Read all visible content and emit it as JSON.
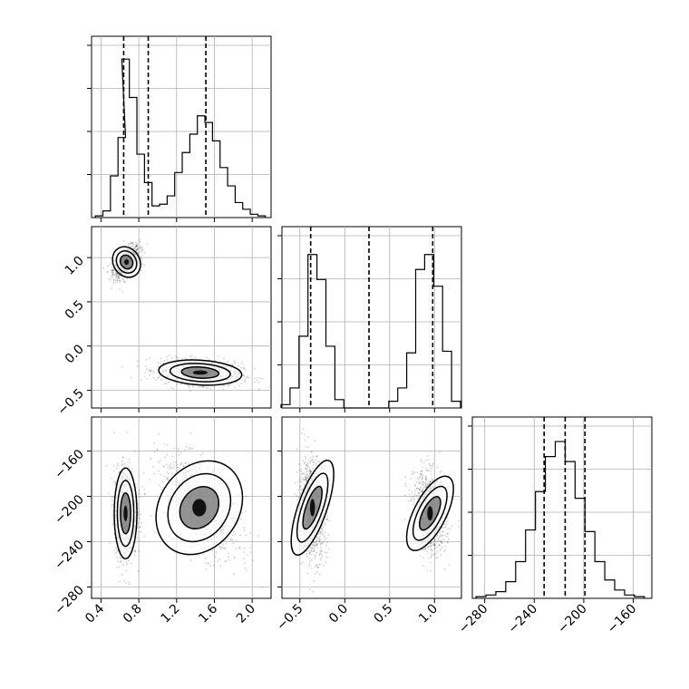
{
  "chart_data": [
    {
      "type": "histogram",
      "panel": "p0-marginal",
      "x": {
        "ticks": [
          "0.4",
          "0.8",
          "1.2",
          "1.6",
          "2.0"
        ],
        "range": [
          0.3,
          2.2
        ]
      },
      "bins": [
        {
          "x": 0.38,
          "h": 0.01
        },
        {
          "x": 0.46,
          "h": 0.04
        },
        {
          "x": 0.54,
          "h": 0.25
        },
        {
          "x": 0.62,
          "h": 0.48
        },
        {
          "x": 0.66,
          "h": 0.95
        },
        {
          "x": 0.74,
          "h": 0.72
        },
        {
          "x": 0.82,
          "h": 0.38
        },
        {
          "x": 0.9,
          "h": 0.21
        },
        {
          "x": 0.98,
          "h": 0.07
        },
        {
          "x": 1.06,
          "h": 0.08
        },
        {
          "x": 1.14,
          "h": 0.13
        },
        {
          "x": 1.22,
          "h": 0.27
        },
        {
          "x": 1.3,
          "h": 0.39
        },
        {
          "x": 1.38,
          "h": 0.5
        },
        {
          "x": 1.46,
          "h": 0.61
        },
        {
          "x": 1.54,
          "h": 0.57
        },
        {
          "x": 1.62,
          "h": 0.46
        },
        {
          "x": 1.7,
          "h": 0.3
        },
        {
          "x": 1.78,
          "h": 0.19
        },
        {
          "x": 1.86,
          "h": 0.09
        },
        {
          "x": 1.94,
          "h": 0.05
        },
        {
          "x": 2.02,
          "h": 0.02
        },
        {
          "x": 2.1,
          "h": 0.01
        }
      ],
      "quantiles": [
        0.64,
        0.9,
        1.51
      ]
    },
    {
      "type": "histogram",
      "panel": "p1-marginal",
      "x": {
        "ticks": [
          "−0.5",
          "0.0",
          "0.5",
          "1.0"
        ],
        "range": [
          -0.7,
          1.3
        ]
      },
      "bins": [
        {
          "x": -0.66,
          "h": 0.02
        },
        {
          "x": -0.56,
          "h": 0.12
        },
        {
          "x": -0.46,
          "h": 0.43
        },
        {
          "x": -0.36,
          "h": 0.92
        },
        {
          "x": -0.26,
          "h": 0.77
        },
        {
          "x": -0.16,
          "h": 0.37
        },
        {
          "x": -0.06,
          "h": 0.05
        },
        {
          "x": 0.04,
          "h": 0.0
        },
        {
          "x": 0.14,
          "h": 0.0
        },
        {
          "x": 0.24,
          "h": 0.0
        },
        {
          "x": 0.34,
          "h": 0.0
        },
        {
          "x": 0.44,
          "h": 0.0
        },
        {
          "x": 0.54,
          "h": 0.04
        },
        {
          "x": 0.64,
          "h": 0.12
        },
        {
          "x": 0.74,
          "h": 0.33
        },
        {
          "x": 0.84,
          "h": 0.83
        },
        {
          "x": 0.94,
          "h": 0.92
        },
        {
          "x": 1.04,
          "h": 0.73
        },
        {
          "x": 1.14,
          "h": 0.34
        },
        {
          "x": 1.24,
          "h": 0.04
        }
      ],
      "quantiles": [
        -0.38,
        0.27,
        0.98
      ]
    },
    {
      "type": "histogram",
      "panel": "p2-marginal",
      "x": {
        "ticks": [
          "−280",
          "−240",
          "−200",
          "−160"
        ],
        "range": [
          -290,
          -145
        ]
      },
      "bins": [
        {
          "x": -283,
          "h": 0.01
        },
        {
          "x": -275,
          "h": 0.02
        },
        {
          "x": -267,
          "h": 0.04
        },
        {
          "x": -259,
          "h": 0.1
        },
        {
          "x": -251,
          "h": 0.22
        },
        {
          "x": -243,
          "h": 0.41
        },
        {
          "x": -235,
          "h": 0.64
        },
        {
          "x": -227,
          "h": 0.85
        },
        {
          "x": -219,
          "h": 0.94
        },
        {
          "x": -211,
          "h": 0.82
        },
        {
          "x": -203,
          "h": 0.6
        },
        {
          "x": -195,
          "h": 0.4
        },
        {
          "x": -187,
          "h": 0.22
        },
        {
          "x": -179,
          "h": 0.11
        },
        {
          "x": -171,
          "h": 0.05
        },
        {
          "x": -163,
          "h": 0.02
        },
        {
          "x": -155,
          "h": 0.01
        }
      ],
      "quantiles": [
        -232,
        -215,
        -199
      ]
    },
    {
      "type": "scatter",
      "panel": "p0-vs-p1",
      "x": {
        "ticks": [
          "0.4",
          "0.8",
          "1.2",
          "1.6",
          "2.0"
        ],
        "range": [
          0.3,
          2.2
        ]
      },
      "y": {
        "ticks": [
          "−0.5",
          "0.0",
          "0.5",
          "1.0"
        ],
        "range": [
          -0.7,
          1.35
        ]
      },
      "clusters": [
        {
          "center": [
            0.67,
            0.95
          ],
          "spread": [
            0.07,
            0.09
          ],
          "corr": 0.5
        },
        {
          "center": [
            1.45,
            -0.3
          ],
          "spread": [
            0.22,
            0.07
          ],
          "corr": -0.2
        }
      ]
    },
    {
      "type": "scatter",
      "panel": "p0-vs-p2",
      "x": {
        "ticks": [
          "0.4",
          "0.8",
          "1.2",
          "1.6",
          "2.0"
        ],
        "range": [
          0.3,
          2.2
        ]
      },
      "y": {
        "ticks": [
          "−160",
          "−200",
          "−240",
          "−280"
        ],
        "range": [
          -290,
          -130
        ]
      },
      "clusters": [
        {
          "center": [
            0.66,
            -215
          ],
          "spread": [
            0.06,
            20
          ],
          "corr": 0.0
        },
        {
          "center": [
            1.44,
            -210
          ],
          "spread": [
            0.21,
            22
          ],
          "corr": -0.55
        }
      ]
    },
    {
      "type": "scatter",
      "panel": "p1-vs-p2",
      "x": {
        "ticks": [
          "−0.5",
          "0.0",
          "0.5",
          "1.0"
        ],
        "range": [
          -0.7,
          1.3
        ]
      },
      "y": {
        "ticks": [
          "−160",
          "−200",
          "−240",
          "−280"
        ],
        "range": [
          -290,
          -130
        ]
      },
      "clusters": [
        {
          "center": [
            -0.36,
            -210
          ],
          "spread": [
            0.08,
            22
          ],
          "corr": -0.1
        },
        {
          "center": [
            0.95,
            -215
          ],
          "spread": [
            0.09,
            18
          ],
          "corr": -0.2
        }
      ]
    }
  ]
}
